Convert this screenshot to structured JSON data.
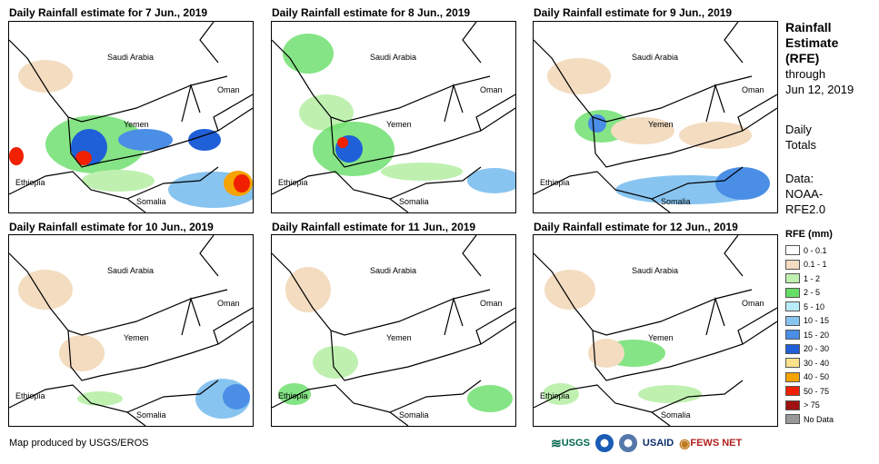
{
  "panels": [
    {
      "title": "Daily Rainfall estimate for 7 Jun., 2019"
    },
    {
      "title": "Daily Rainfall estimate for 8 Jun., 2019"
    },
    {
      "title": "Daily Rainfall estimate for 9 Jun., 2019"
    },
    {
      "title": "Daily Rainfall estimate for 10 Jun., 2019"
    },
    {
      "title": "Daily Rainfall estimate for 11 Jun., 2019"
    },
    {
      "title": "Daily Rainfall estimate for 12 Jun., 2019"
    }
  ],
  "map_labels": {
    "saudi": "Saudi Arabia",
    "oman": "Oman",
    "yemen": "Yemen",
    "ethiopia": "Ethiopia",
    "somalia": "Somalia"
  },
  "side": {
    "title1": "Rainfall",
    "title2": "Estimate",
    "title3": "(RFE)",
    "through": "through",
    "date": "Jun 12, 2019",
    "daily": "Daily",
    "totals": "Totals",
    "data_label": "Data:",
    "data_src1": "NOAA-",
    "data_src2": "RFE2.0"
  },
  "legend": {
    "title": "RFE (mm)",
    "items": [
      {
        "label": "0 - 0.1",
        "color": "#ffffff"
      },
      {
        "label": "0.1 - 1",
        "color": "#f3dcc0"
      },
      {
        "label": "1 - 2",
        "color": "#bff0b0"
      },
      {
        "label": "2 - 5",
        "color": "#66dd66"
      },
      {
        "label": "5 - 10",
        "color": "#b8ecf8"
      },
      {
        "label": "10 - 15",
        "color": "#88c4f0"
      },
      {
        "label": "15 - 20",
        "color": "#4a8ee6"
      },
      {
        "label": "20 - 30",
        "color": "#1f5fd8"
      },
      {
        "label": "30 - 40",
        "color": "#fce38a"
      },
      {
        "label": "40 - 50",
        "color": "#f5a300"
      },
      {
        "label": "50 - 75",
        "color": "#f02000"
      },
      {
        "label": "> 75",
        "color": "#a01010"
      },
      {
        "label": "No Data",
        "color": "#999999"
      }
    ]
  },
  "footer": "Map produced by USGS/EROS",
  "logos": {
    "usgs": "USGS",
    "usaid": "USAID",
    "fews": "FEWS NET"
  }
}
